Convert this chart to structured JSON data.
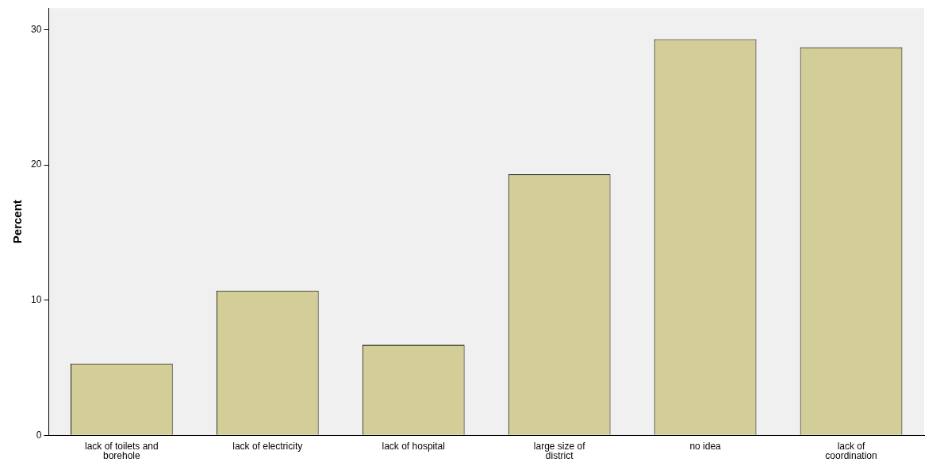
{
  "chart_data": {
    "type": "bar",
    "ylabel": "Percent",
    "categories": [
      "lack of toilets and borehole",
      "lack of electricity",
      "lack of hospital",
      "large size of district",
      "no idea",
      "lack of coordination"
    ],
    "values": [
      5.3,
      10.7,
      6.7,
      19.3,
      29.3,
      28.7
    ],
    "color": "#d3ce97",
    "ylim": [
      0,
      31.6
    ],
    "yticks": [
      0,
      10,
      20,
      30
    ],
    "grid": false,
    "legend": false
  }
}
